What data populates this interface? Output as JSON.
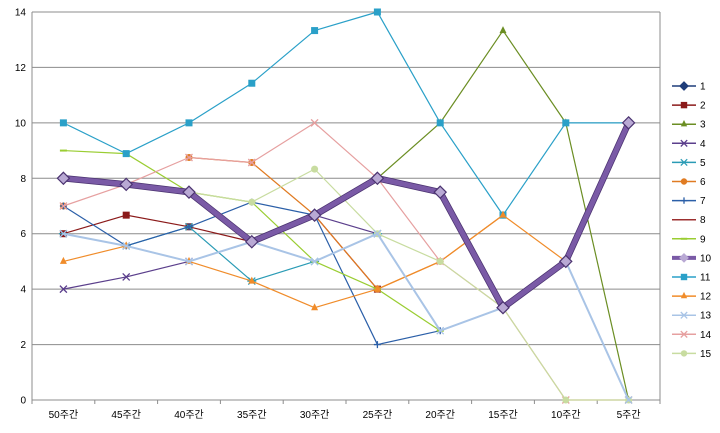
{
  "chart_data": {
    "type": "line",
    "categories": [
      "50주간",
      "45주간",
      "40주간",
      "35주간",
      "30주간",
      "25주간",
      "20주간",
      "15주간",
      "10주간",
      "5주간"
    ],
    "ylim": [
      0,
      14
    ],
    "yticks": [
      "0",
      "2",
      "4",
      "6",
      "8",
      "10",
      "12",
      "14"
    ],
    "grid": true,
    "legend_position": "right",
    "series": [
      {
        "name": "1",
        "color": "#1f3d7a",
        "marker": "diamond",
        "width": 1.2,
        "values": [
          null,
          null,
          null,
          null,
          null,
          null,
          null,
          null,
          null,
          null
        ]
      },
      {
        "name": "2",
        "color": "#8b1a1a",
        "marker": "square",
        "width": 1.2,
        "values": [
          6,
          6.67,
          6.25,
          5.71,
          6.67,
          4,
          null,
          null,
          null,
          null
        ]
      },
      {
        "name": "3",
        "color": "#6b8e23",
        "marker": "triangle",
        "width": 1.2,
        "values": [
          null,
          null,
          null,
          null,
          null,
          8,
          10,
          13.33,
          10,
          0
        ]
      },
      {
        "name": "4",
        "color": "#5b3f8c",
        "marker": "x",
        "width": 1.2,
        "values": [
          4,
          4.44,
          5,
          5.71,
          6.67,
          6,
          null,
          null,
          null,
          null
        ]
      },
      {
        "name": "5",
        "color": "#2a9bb5",
        "marker": "star",
        "width": 1.2,
        "values": [
          6,
          5.56,
          6.25,
          4.29,
          5,
          6,
          null,
          null,
          null,
          null
        ]
      },
      {
        "name": "6",
        "color": "#e07b22",
        "marker": "circle",
        "width": 1.2,
        "values": [
          7,
          null,
          8.75,
          8.57,
          6.67,
          4,
          5,
          6.67,
          null,
          null
        ]
      },
      {
        "name": "7",
        "color": "#2b5fa8",
        "marker": "plus",
        "width": 1.2,
        "values": [
          7,
          5.56,
          6.25,
          7.14,
          6.67,
          2,
          2.5,
          null,
          null,
          null
        ]
      },
      {
        "name": "8",
        "color": "#9c2f2f",
        "marker": "none",
        "width": 1.2,
        "values": [
          null,
          null,
          null,
          null,
          null,
          null,
          null,
          null,
          null,
          null
        ]
      },
      {
        "name": "9",
        "color": "#9acd32",
        "marker": "dash",
        "width": 1.2,
        "values": [
          9,
          8.89,
          7.5,
          7.14,
          5,
          4,
          2.5,
          3.33,
          5,
          10
        ]
      },
      {
        "name": "10",
        "color": "#7a5aa6",
        "marker": "diamond",
        "width": 5,
        "values": [
          8,
          7.78,
          7.5,
          5.71,
          6.67,
          8,
          7.5,
          3.33,
          5,
          10
        ]
      },
      {
        "name": "11",
        "color": "#2aa0c8",
        "marker": "square",
        "width": 1.2,
        "values": [
          10,
          8.89,
          10,
          11.43,
          13.33,
          14,
          10,
          6.67,
          10,
          10
        ]
      },
      {
        "name": "12",
        "color": "#f08c2a",
        "marker": "triangle",
        "width": 1.2,
        "values": [
          5,
          5.56,
          5,
          4.29,
          3.33,
          4,
          5,
          6.67,
          5,
          null
        ]
      },
      {
        "name": "13",
        "color": "#a9c4e6",
        "marker": "x",
        "width": 2,
        "values": [
          6,
          5.56,
          5,
          5.71,
          5,
          6,
          2.5,
          3.33,
          5,
          0
        ]
      },
      {
        "name": "14",
        "color": "#e6a0a0",
        "marker": "x",
        "width": 1.2,
        "values": [
          7,
          7.78,
          8.75,
          8.57,
          10,
          8,
          5,
          3.33,
          0,
          0
        ]
      },
      {
        "name": "15",
        "color": "#c8dca0",
        "marker": "circle",
        "width": 1.2,
        "values": [
          null,
          null,
          7.5,
          7.14,
          8.33,
          6,
          5,
          3.33,
          0,
          0
        ]
      }
    ]
  }
}
